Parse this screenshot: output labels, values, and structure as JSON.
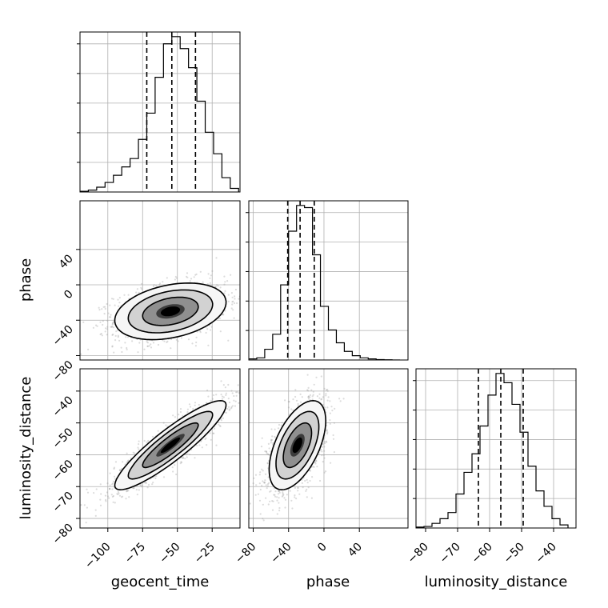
{
  "chart_data": {
    "type": "corner",
    "parameters": [
      "geocent_time",
      "phase",
      "luminosity_distance"
    ],
    "ranges": {
      "geocent_time": [
        -120,
        -5
      ],
      "phase": [
        -85,
        95
      ],
      "luminosity_distance": [
        -83,
        -33
      ]
    },
    "grid": true,
    "colors": {
      "line": "#000000",
      "grid": "#b0b0b0",
      "scatter": "#9a9a9a"
    },
    "ticks": {
      "geocent_time": [
        -100,
        -75,
        -50,
        -25
      ],
      "phase": [
        -80,
        -40,
        0,
        40
      ],
      "luminosity_distance": [
        -80,
        -70,
        -60,
        -50,
        -40
      ]
    },
    "tick_labels": {
      "geocent_time": [
        "−100",
        "−75",
        "−50",
        "−25"
      ],
      "phase": [
        "−80",
        "−40",
        "0",
        "40"
      ],
      "luminosity_distance": [
        "−80",
        "−70",
        "−60",
        "−50",
        "−40"
      ]
    },
    "y_ticks_phase_row": {
      "values": [
        -80,
        -40,
        0,
        40
      ],
      "labels": [
        "−80",
        "−40",
        "0",
        "40"
      ]
    },
    "y_ticks_luminosity_row": {
      "values": [
        -80,
        -70,
        -60,
        -50,
        -40
      ],
      "labels": [
        "−80",
        "−70",
        "−60",
        "−50",
        "−40"
      ]
    },
    "marginals": {
      "geocent_time": {
        "bin_edges": [
          -120,
          -114,
          -108,
          -102,
          -96,
          -90,
          -84,
          -78,
          -72,
          -66,
          -60,
          -54,
          -48,
          -42,
          -36,
          -30,
          -24,
          -18,
          -12,
          -6
        ],
        "counts": [
          0.3,
          0.8,
          2.0,
          4.0,
          7.0,
          10.5,
          14,
          22,
          33,
          48,
          62,
          65,
          60,
          52,
          38,
          25,
          16,
          6,
          1.5
        ],
        "quantiles": [
          -72,
          -54,
          -37
        ]
      },
      "phase": {
        "bin_edges": [
          -85,
          -76,
          -67,
          -58,
          -49,
          -40,
          -31,
          -22,
          -13,
          -4,
          5,
          14,
          23,
          32,
          41,
          50,
          59,
          68,
          77,
          86
        ],
        "counts": [
          0.5,
          1,
          5,
          12,
          35,
          60,
          72,
          71,
          49,
          25,
          14,
          8,
          4,
          2,
          1,
          0.5,
          0.2,
          0.1,
          0
        ],
        "quantiles": [
          -41,
          -27,
          -11
        ]
      },
      "luminosity_distance": {
        "bin_edges": [
          -83,
          -80.5,
          -78,
          -75.5,
          -73,
          -70.5,
          -68,
          -65.5,
          -63,
          -60.5,
          -58,
          -55.5,
          -53,
          -50.5,
          -48,
          -45.5,
          -43,
          -40.5,
          -38,
          -35.5
        ],
        "counts": [
          0.3,
          0.5,
          1.5,
          3,
          5,
          11,
          18,
          24,
          33,
          43,
          50,
          47,
          40,
          31,
          20,
          12,
          7,
          3,
          1
        ],
        "quantiles": [
          -63.5,
          -56.5,
          -49.5
        ]
      }
    },
    "joint": {
      "geocent_time|phase": {
        "mean": [
          -55,
          -30
        ],
        "std": [
          20,
          16
        ],
        "corr": 0.32,
        "contour_levels": [
          0.12,
          0.39,
          0.68,
          0.86
        ]
      },
      "geocent_time|luminosity_distance": {
        "mean": [
          -55,
          -57
        ],
        "std": [
          20,
          7
        ],
        "corr": 0.9,
        "contour_levels": [
          0.12,
          0.39,
          0.68,
          0.86
        ]
      },
      "phase|luminosity_distance": {
        "mean": [
          -30,
          -57
        ],
        "std": [
          16,
          7
        ],
        "corr": 0.55,
        "contour_levels": [
          0.12,
          0.39,
          0.68,
          0.86
        ]
      }
    }
  }
}
